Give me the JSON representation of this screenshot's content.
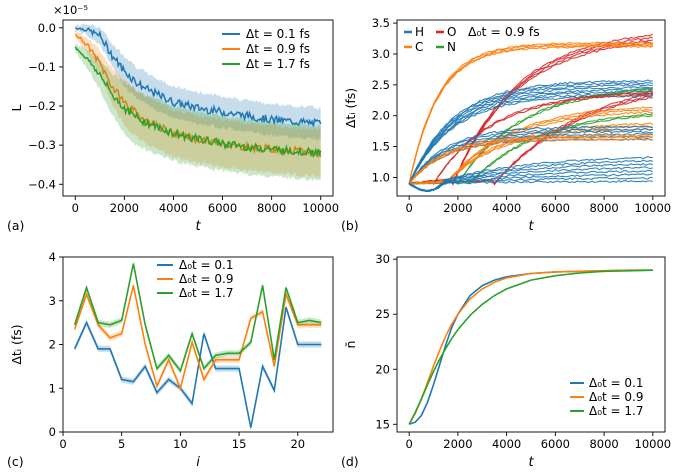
{
  "colors": {
    "blue": "#1f77b4",
    "orange": "#ff7f0e",
    "green": "#2ca02c",
    "red": "#d62728"
  },
  "chart_data": [
    {
      "id": "a",
      "panel_label": "(a)",
      "type": "line",
      "xlabel": "t",
      "ylabel": "L",
      "scale_label": "×10⁻⁵",
      "xlim": [
        -500,
        10500
      ],
      "ylim": [
        -0.43,
        0.02
      ],
      "xticks": [
        0,
        2000,
        4000,
        6000,
        8000,
        10000
      ],
      "xtick_labels": [
        "0",
        "2000",
        "4000",
        "6000",
        "8000",
        "10000"
      ],
      "yticks": [
        0.0,
        -0.1,
        -0.2,
        -0.3,
        -0.4
      ],
      "ytick_labels": [
        "0.0",
        "−0.1",
        "−0.2",
        "−0.3",
        "−0.4"
      ],
      "legend_position": "top-right",
      "x": [
        0,
        500,
        1000,
        1500,
        2000,
        2500,
        3000,
        4000,
        5000,
        6000,
        7000,
        8000,
        9000,
        10000
      ],
      "series": [
        {
          "name": "Δt = 0.1 fs",
          "color_key": "blue",
          "values": [
            0.0,
            -0.005,
            -0.02,
            -0.07,
            -0.11,
            -0.14,
            -0.16,
            -0.19,
            -0.205,
            -0.215,
            -0.225,
            -0.235,
            -0.24,
            -0.245
          ],
          "band": 0.04
        },
        {
          "name": "Δt = 0.9 fs",
          "color_key": "orange",
          "values": [
            -0.015,
            -0.045,
            -0.09,
            -0.15,
            -0.19,
            -0.22,
            -0.24,
            -0.27,
            -0.285,
            -0.295,
            -0.305,
            -0.31,
            -0.315,
            -0.32
          ],
          "band": 0.06
        },
        {
          "name": "Δt = 1.7 fs",
          "color_key": "green",
          "values": [
            -0.05,
            -0.08,
            -0.12,
            -0.17,
            -0.205,
            -0.23,
            -0.245,
            -0.27,
            -0.285,
            -0.295,
            -0.305,
            -0.31,
            -0.315,
            -0.32
          ],
          "band": 0.07
        }
      ]
    },
    {
      "id": "b",
      "panel_label": "(b)",
      "type": "line",
      "xlabel": "t",
      "ylabel": "Δtᵢ (fs)",
      "annotation": "Δ₀t = 0.9 fs",
      "xlim": [
        -500,
        10500
      ],
      "ylim": [
        0.7,
        3.55
      ],
      "xticks": [
        0,
        2000,
        4000,
        6000,
        8000,
        10000
      ],
      "xtick_labels": [
        "0",
        "2000",
        "4000",
        "6000",
        "8000",
        "10000"
      ],
      "yticks": [
        1.0,
        1.5,
        2.0,
        2.5,
        3.0,
        3.5
      ],
      "ytick_labels": [
        "1.0",
        "1.5",
        "2.0",
        "2.5",
        "3.0",
        "3.5"
      ],
      "legend": [
        {
          "name": "H",
          "color_key": "blue"
        },
        {
          "name": "O",
          "color_key": "red"
        },
        {
          "name": "C",
          "color_key": "orange"
        },
        {
          "name": "N",
          "color_key": "green"
        }
      ],
      "legend_position": "top-left",
      "series": [
        {
          "name": "O",
          "color_key": "red",
          "plateau": 3.35,
          "rate": 2600,
          "delay": 1800,
          "count": 4,
          "spread": 0.04
        },
        {
          "name": "C",
          "color_key": "orange",
          "plateau": 3.15,
          "rate": 1200,
          "delay": 0,
          "count": 4,
          "spread": 0.02
        },
        {
          "name": "O",
          "color_key": "red",
          "plateau": 2.65,
          "rate": 3800,
          "delay": 3500,
          "count": 3,
          "spread": 0.04
        },
        {
          "name": "H",
          "color_key": "blue",
          "plateau": 2.45,
          "rate": 1800,
          "delay": 0,
          "count": 8,
          "spread": 0.035
        },
        {
          "name": "N",
          "color_key": "green",
          "plateau": 2.5,
          "rate": 2600,
          "delay": 2000,
          "count": 2,
          "spread": 0.03
        },
        {
          "name": "O",
          "color_key": "red",
          "plateau": 2.4,
          "rate": 2400,
          "delay": 1000,
          "count": 2,
          "spread": 0.03
        },
        {
          "name": "C",
          "color_key": "orange",
          "plateau": 2.15,
          "rate": 2600,
          "delay": 1500,
          "count": 3,
          "spread": 0.04
        },
        {
          "name": "N",
          "color_key": "green",
          "plateau": 2.1,
          "rate": 2800,
          "delay": 2500,
          "count": 2,
          "spread": 0.03
        },
        {
          "name": "C",
          "color_key": "orange",
          "plateau": 1.85,
          "rate": 2200,
          "delay": 1500,
          "count": 3,
          "spread": 0.04
        },
        {
          "name": "H",
          "color_key": "blue",
          "plateau": 1.72,
          "rate": 1500,
          "delay": 0,
          "count": 6,
          "spread": 0.04
        },
        {
          "name": "C",
          "color_key": "orange",
          "plateau": 1.65,
          "rate": 1500,
          "delay": 0,
          "count": 3,
          "spread": 0.03
        },
        {
          "name": "H",
          "color_key": "blue",
          "plateau": 1.15,
          "rate": 3500,
          "delay": 1000,
          "count": 8,
          "spread": 0.06,
          "dip": 0.12
        }
      ]
    },
    {
      "id": "c",
      "panel_label": "(c)",
      "type": "line",
      "xlabel": "i",
      "ylabel": "Δtᵢ (fs)",
      "xlim": [
        0,
        23
      ],
      "ylim": [
        0,
        4
      ],
      "xticks": [
        0,
        5,
        10,
        15,
        20
      ],
      "xtick_labels": [
        "0",
        "5",
        "10",
        "15",
        "20"
      ],
      "yticks": [
        0,
        1,
        2,
        3,
        4
      ],
      "ytick_labels": [
        "0",
        "1",
        "2",
        "3",
        "4"
      ],
      "legend_position": "top-left",
      "x": [
        1,
        2,
        3,
        4,
        5,
        6,
        7,
        8,
        9,
        10,
        11,
        12,
        13,
        14,
        15,
        16,
        17,
        18,
        19,
        20,
        21,
        22
      ],
      "series": [
        {
          "name": "Δ₀t = 0.1",
          "color_key": "blue",
          "values": [
            1.9,
            2.5,
            1.9,
            1.9,
            1.2,
            1.15,
            1.5,
            0.9,
            1.2,
            1.0,
            0.65,
            2.25,
            1.45,
            1.45,
            1.45,
            0.1,
            1.5,
            0.95,
            2.85,
            2.0,
            2.0,
            2.0
          ]
        },
        {
          "name": "Δ₀t = 0.9",
          "color_key": "orange",
          "values": [
            2.35,
            3.15,
            2.45,
            2.15,
            2.25,
            3.35,
            2.0,
            1.05,
            1.65,
            1.0,
            2.05,
            1.2,
            1.65,
            1.65,
            1.65,
            2.6,
            2.75,
            1.5,
            3.15,
            2.45,
            2.45,
            2.45
          ]
        },
        {
          "name": "Δ₀t = 1.7",
          "color_key": "green",
          "values": [
            2.45,
            3.3,
            2.5,
            2.45,
            2.55,
            3.85,
            2.45,
            1.45,
            1.75,
            1.4,
            2.25,
            1.45,
            1.75,
            1.8,
            1.8,
            2.05,
            3.35,
            1.65,
            3.3,
            2.5,
            2.55,
            2.5
          ]
        }
      ]
    },
    {
      "id": "d",
      "panel_label": "(d)",
      "type": "line",
      "xlabel": "t",
      "ylabel": "n̄",
      "xlim": [
        -500,
        10500
      ],
      "ylim": [
        14.3,
        30.2
      ],
      "xticks": [
        0,
        2000,
        4000,
        6000,
        8000,
        10000
      ],
      "xtick_labels": [
        "0",
        "2000",
        "4000",
        "6000",
        "8000",
        "10000"
      ],
      "yticks": [
        15,
        20,
        25,
        30
      ],
      "ytick_labels": [
        "15",
        "20",
        "25",
        "30"
      ],
      "legend_position": "bottom-right",
      "x": [
        0,
        250,
        500,
        750,
        1000,
        1250,
        1500,
        1750,
        2000,
        2500,
        3000,
        3500,
        4000,
        5000,
        6000,
        7000,
        8000,
        9000,
        10000
      ],
      "series": [
        {
          "name": "Δ₀t = 0.1",
          "color_key": "blue",
          "values": [
            15.0,
            15.2,
            15.8,
            17.0,
            18.6,
            20.4,
            22.2,
            23.8,
            25.0,
            26.7,
            27.6,
            28.1,
            28.4,
            28.7,
            28.85,
            28.9,
            28.95,
            29.0,
            29.0
          ]
        },
        {
          "name": "Δ₀t = 0.9",
          "color_key": "orange",
          "values": [
            15.0,
            16.0,
            17.3,
            18.8,
            20.3,
            21.7,
            23.0,
            24.1,
            25.0,
            26.4,
            27.3,
            27.9,
            28.3,
            28.7,
            28.85,
            28.9,
            28.95,
            29.0,
            29.0
          ]
        },
        {
          "name": "Δ₀t = 1.7",
          "color_key": "green",
          "values": [
            15.0,
            16.1,
            17.3,
            18.6,
            19.8,
            20.9,
            21.9,
            22.8,
            23.6,
            24.9,
            25.9,
            26.7,
            27.3,
            28.1,
            28.5,
            28.75,
            28.9,
            28.95,
            29.0
          ]
        }
      ]
    }
  ]
}
